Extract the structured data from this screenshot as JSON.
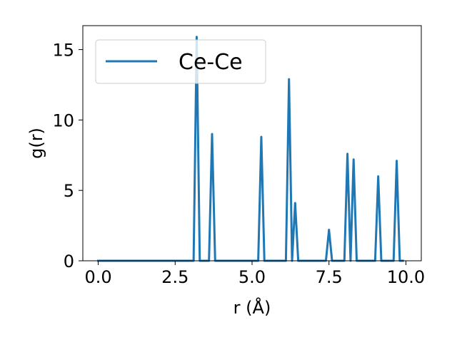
{
  "chart_data": {
    "type": "line",
    "xlabel": "r (Å)",
    "ylabel": "g(r)",
    "xlim": [
      -0.5,
      10.5
    ],
    "ylim": [
      0,
      16.7
    ],
    "xticks": [
      0.0,
      2.5,
      5.0,
      7.5,
      10.0
    ],
    "xtick_labels": [
      "0.0",
      "2.5",
      "5.0",
      "7.5",
      "10.0"
    ],
    "yticks": [
      0,
      5,
      10,
      15
    ],
    "ytick_labels": [
      "0",
      "5",
      "10",
      "15"
    ],
    "grid": false,
    "legend_position": "upper-left",
    "series": [
      {
        "name": "Ce-Ce",
        "color": "#1f77b4",
        "x": [
          0.0,
          3.1,
          3.2,
          3.3,
          3.6,
          3.7,
          3.8,
          5.2,
          5.3,
          5.4,
          6.1,
          6.2,
          6.3,
          6.4,
          6.5,
          7.4,
          7.5,
          7.6,
          8.0,
          8.1,
          8.2,
          8.3,
          8.4,
          9.0,
          9.1,
          9.2,
          9.6,
          9.7,
          9.8,
          9.9
        ],
        "y": [
          0.0,
          0.0,
          15.9,
          0.0,
          0.0,
          9.0,
          0.0,
          0.0,
          8.8,
          0.0,
          0.0,
          12.9,
          0.0,
          4.1,
          0.0,
          0.0,
          2.2,
          0.0,
          0.0,
          7.6,
          0.0,
          7.2,
          0.0,
          0.0,
          6.0,
          0.0,
          0.0,
          7.1,
          0.0,
          0.0
        ]
      }
    ]
  }
}
